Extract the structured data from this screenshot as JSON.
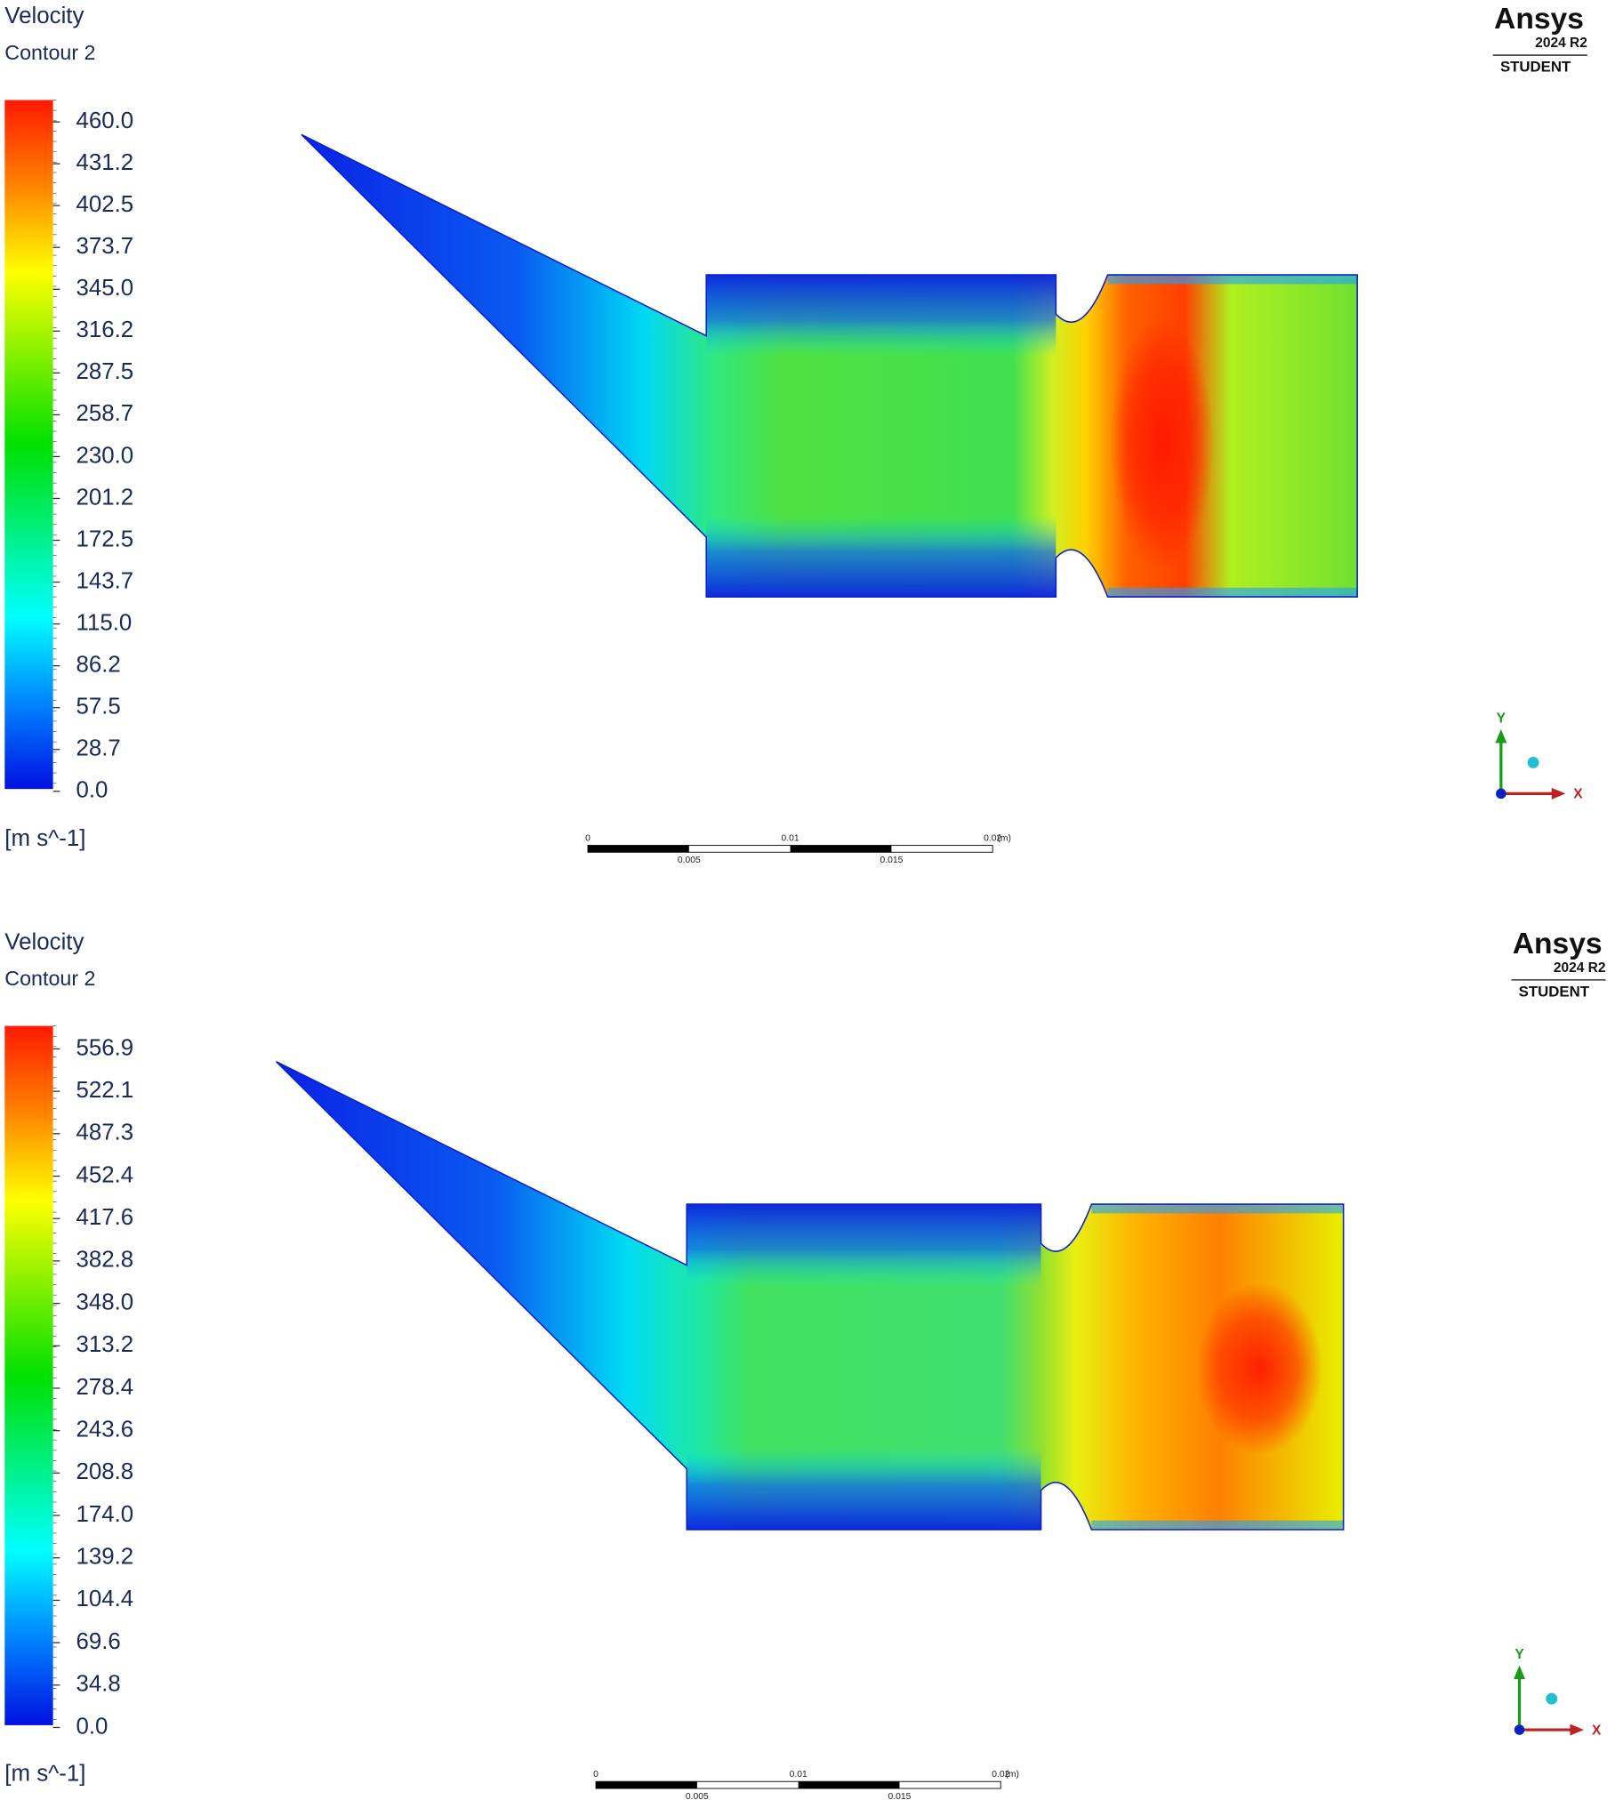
{
  "panels": [
    {
      "title": "Velocity",
      "subtitle": "Contour 2",
      "legend": {
        "ticks": [
          "460.0",
          "431.2",
          "402.5",
          "373.7",
          "345.0",
          "316.2",
          "287.5",
          "258.7",
          "230.0",
          "201.2",
          "172.5",
          "143.7",
          "115.0",
          "86.2",
          "57.5",
          "28.7",
          "0.0"
        ],
        "unit": "[m s^-1]"
      },
      "logo": {
        "brand": "Ansys",
        "version": "2024 R2",
        "edition": "STUDENT"
      },
      "scale_bar": {
        "labels_top": [
          "0",
          "0.01",
          "0.02"
        ],
        "unit": "(m)",
        "labels_bottom": [
          "0.005",
          "0.015"
        ]
      },
      "axes": {
        "y": "Y",
        "x": "X"
      }
    },
    {
      "title": "Velocity",
      "subtitle": "Contour 2",
      "legend": {
        "ticks": [
          "556.9",
          "522.1",
          "487.3",
          "452.4",
          "417.6",
          "382.8",
          "348.0",
          "313.2",
          "278.4",
          "243.6",
          "208.8",
          "174.0",
          "139.2",
          "104.4",
          "69.6",
          "34.8",
          "0.0"
        ],
        "unit": "[m s^-1]"
      },
      "logo": {
        "brand": "Ansys",
        "version": "2024 R2",
        "edition": "STUDENT"
      },
      "scale_bar": {
        "labels_top": [
          "0",
          "0.01",
          "0.02"
        ],
        "unit": "(m)",
        "labels_bottom": [
          "0.005",
          "0.015"
        ]
      },
      "axes": {
        "y": "Y",
        "x": "X"
      }
    }
  ]
}
